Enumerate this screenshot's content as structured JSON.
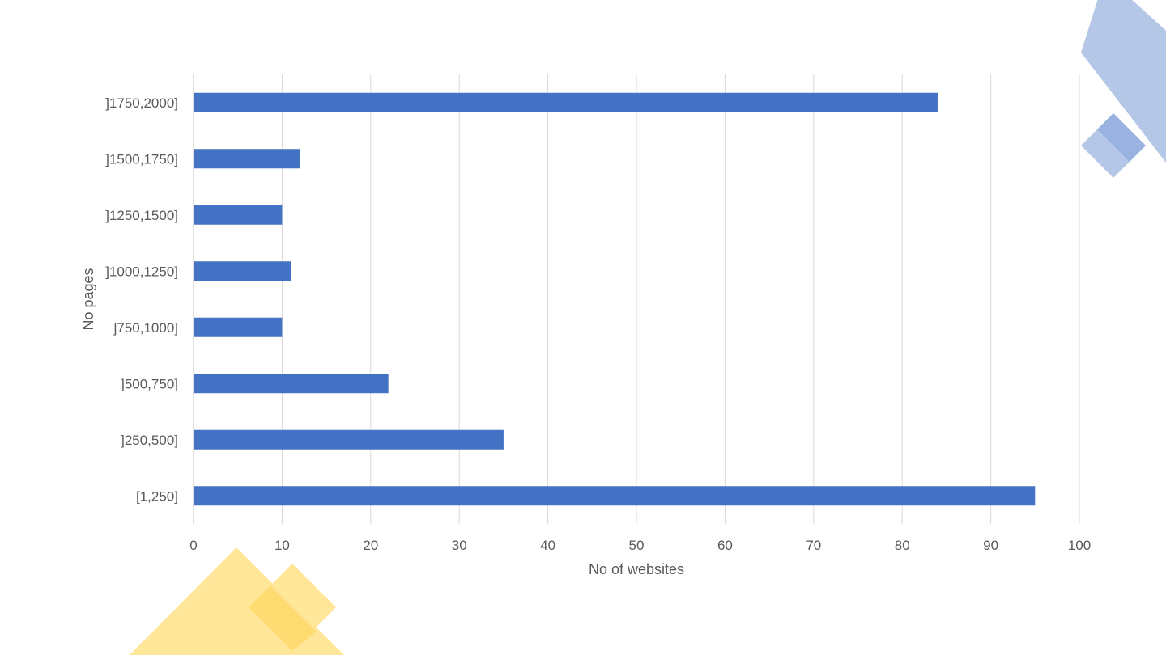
{
  "slide": {
    "decor_colors": {
      "blue": "#b4c7e7",
      "yellow": "#ffe699",
      "yellow_overlap": "#ffd966",
      "blue_overlap": "#8faadc"
    }
  },
  "chart_data": {
    "type": "bar",
    "orientation": "horizontal",
    "categories": [
      "[1,250]",
      "]250,500]",
      "]500,750]",
      "]750,1000]",
      "]1000,1250]",
      "]1250,1500]",
      "]1500,1750]",
      "]1750,2000]"
    ],
    "values": [
      95,
      35,
      22,
      10,
      11,
      10,
      12,
      84
    ],
    "xlabel": "No of websites",
    "ylabel": "No pages",
    "xlim": [
      0,
      100
    ],
    "xticks": [
      0,
      10,
      20,
      30,
      40,
      50,
      60,
      70,
      80,
      90,
      100
    ],
    "grid": "vertical",
    "bar_color": "#4472c4",
    "grid_color": "#d9d9d9",
    "legend": "none"
  }
}
